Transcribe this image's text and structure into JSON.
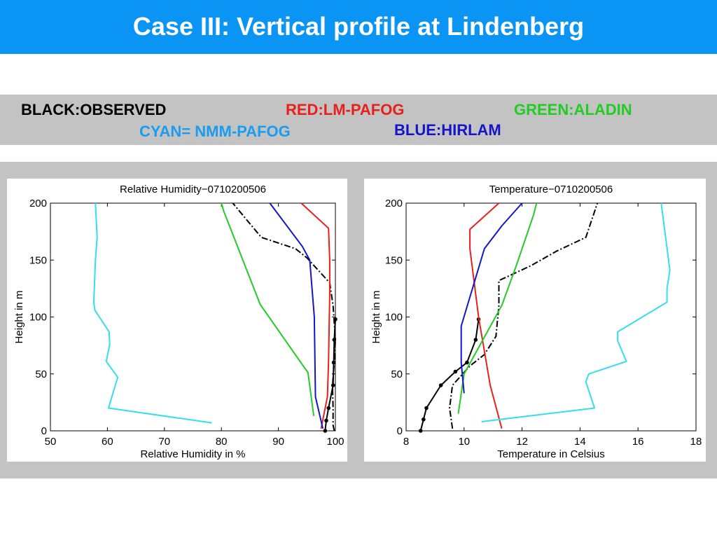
{
  "slide": {
    "title": "Case III: Vertical profile at Lindenberg"
  },
  "legend": {
    "items": [
      {
        "text": "BLACK:OBSERVED",
        "color": "#000000"
      },
      {
        "text": "RED:LM-PAFOG",
        "color": "#e8201c"
      },
      {
        "text": "GREEN:ALADIN",
        "color": "#22cc22"
      },
      {
        "text": "CYAN= NMM-PAFOG",
        "color": "#1a9cf0"
      },
      {
        "text": "BLUE:HIRLAM",
        "color": "#1515c8"
      }
    ]
  },
  "chart_data": [
    {
      "type": "line",
      "title": "Relative Humidity−0710200506",
      "xlabel": "Relative Humidity in %",
      "ylabel": "Height in m",
      "xlim": [
        50,
        100
      ],
      "ylim": [
        0,
        200
      ],
      "xticks": [
        50,
        60,
        70,
        80,
        90,
        100
      ],
      "yticks": [
        0,
        50,
        100,
        150,
        200
      ],
      "series": [
        {
          "color": "#000000",
          "style": "solid-markers",
          "x": [
            98.2,
            98.4,
            98.8,
            99.6,
            99.7,
            99.8,
            100.0
          ],
          "y": [
            0,
            9,
            20,
            40,
            60,
            80,
            98
          ]
        },
        {
          "color": "#000000",
          "style": "dashdot",
          "x": [
            99.8,
            99.6,
            99.6,
            99.5,
            99.8,
            100.0,
            99.6,
            99.0,
            95.0,
            93.0,
            87.0,
            82.0
          ],
          "y": [
            0,
            5,
            20,
            40,
            60,
            80,
            110,
            130,
            152,
            160,
            170,
            200
          ]
        },
        {
          "color": "#e8201c",
          "style": "solid",
          "x": [
            97.5,
            98.6,
            98.8,
            99.0,
            99.0,
            98.8,
            94.0
          ],
          "y": [
            2,
            30,
            60,
            120,
            150,
            178,
            200
          ]
        },
        {
          "color": "#22cc22",
          "style": "solid",
          "x": [
            96.2,
            95.2,
            86.8,
            80.4,
            80.0
          ],
          "y": [
            13,
            51,
            111,
            193,
            200
          ]
        },
        {
          "color": "#1515c8",
          "style": "solid",
          "x": [
            97.8,
            96.5,
            96.3,
            95.5,
            94.2,
            88.5
          ],
          "y": [
            2,
            30,
            100,
            150,
            162,
            200
          ]
        },
        {
          "color": "#33dfe8",
          "style": "solid",
          "x": [
            78.3,
            60.2,
            61.8,
            59.8,
            60.4,
            60.3,
            57.8,
            57.6,
            57.9,
            58.2,
            57.9
          ],
          "y": [
            7,
            20,
            47,
            61,
            76,
            87,
            106,
            113,
            150,
            170,
            200
          ]
        }
      ]
    },
    {
      "type": "line",
      "title": "Temperature−0710200506",
      "xlabel": "Temperature in Celsius",
      "ylabel": "Height in m",
      "xlim": [
        8,
        18
      ],
      "ylim": [
        0,
        200
      ],
      "xticks": [
        8,
        10,
        12,
        14,
        16,
        18
      ],
      "yticks": [
        0,
        50,
        100,
        150,
        200
      ],
      "series": [
        {
          "color": "#000000",
          "style": "solid-markers",
          "x": [
            8.5,
            8.6,
            8.7,
            9.2,
            9.7,
            10.1,
            10.4,
            10.5
          ],
          "y": [
            0,
            10,
            20,
            40,
            52,
            60,
            80,
            98
          ]
        },
        {
          "color": "#000000",
          "style": "dashdot",
          "x": [
            9.6,
            9.5,
            9.6,
            10.2,
            10.7,
            11.1,
            11.2,
            11.2,
            12.3,
            13.2,
            14.2,
            14.6
          ],
          "y": [
            2,
            20,
            40,
            57,
            67,
            83,
            110,
            132,
            145,
            158,
            170,
            200
          ]
        },
        {
          "color": "#e8201c",
          "style": "solid",
          "x": [
            11.3,
            10.9,
            10.5,
            10.2,
            10.2,
            11.2
          ],
          "y": [
            2,
            40,
            100,
            160,
            177,
            200
          ]
        },
        {
          "color": "#22cc22",
          "style": "solid",
          "x": [
            9.8,
            10.0,
            11.3,
            11.8,
            12.4,
            12.5
          ],
          "y": [
            15,
            50,
            110,
            145,
            190,
            200
          ]
        },
        {
          "color": "#1515c8",
          "style": "solid",
          "x": [
            10.0,
            9.9,
            9.9,
            10.7,
            11.3,
            12.0
          ],
          "y": [
            33,
            60,
            92,
            160,
            180,
            200
          ]
        },
        {
          "color": "#33dfe8",
          "style": "solid",
          "x": [
            10.6,
            14.5,
            14.2,
            14.3,
            15.6,
            15.3,
            15.3,
            17.0,
            17.0,
            17.1,
            16.8
          ],
          "y": [
            8,
            20,
            43,
            50,
            61,
            79,
            87,
            113,
            125,
            141,
            200
          ]
        }
      ]
    }
  ]
}
